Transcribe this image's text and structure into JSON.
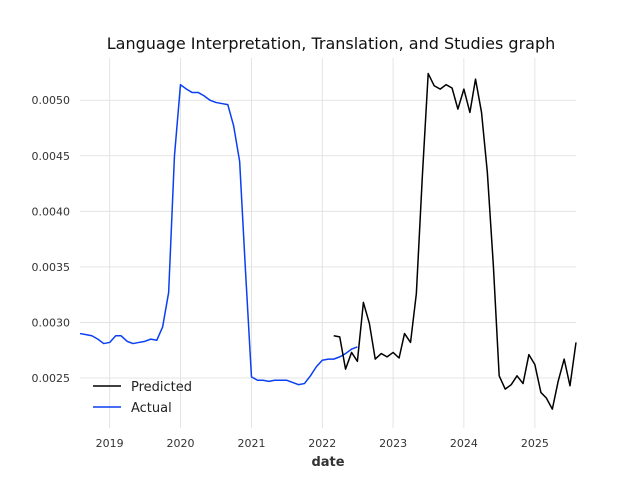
{
  "chart_data": {
    "type": "line",
    "title": "Language Interpretation, Translation, and Studies graph",
    "xlabel": "date",
    "ylabel": "",
    "xlim": [
      "2018-08-01",
      "2025-08-01"
    ],
    "ylim": [
      0.00205,
      0.00538
    ],
    "x_ticks": [
      "2019",
      "2020",
      "2021",
      "2022",
      "2023",
      "2024",
      "2025"
    ],
    "y_ticks": [
      "0.0025",
      "0.0030",
      "0.0035",
      "0.0040",
      "0.0045",
      "0.0050"
    ],
    "grid": true,
    "legend_position": "lower-left",
    "legend": [
      "Predicted",
      "Actual"
    ],
    "series": [
      {
        "name": "Actual",
        "color": "#0a3ff2",
        "points": [
          [
            "2018-08-01",
            0.0029
          ],
          [
            "2018-09-01",
            0.00289
          ],
          [
            "2018-10-01",
            0.00288
          ],
          [
            "2018-11-01",
            0.00285
          ],
          [
            "2018-12-01",
            0.00281
          ],
          [
            "2019-01-01",
            0.00282
          ],
          [
            "2019-02-01",
            0.00288
          ],
          [
            "2019-03-01",
            0.00288
          ],
          [
            "2019-04-01",
            0.00283
          ],
          [
            "2019-05-01",
            0.00281
          ],
          [
            "2019-06-01",
            0.00282
          ],
          [
            "2019-07-01",
            0.00283
          ],
          [
            "2019-08-01",
            0.00285
          ],
          [
            "2019-09-01",
            0.00284
          ],
          [
            "2019-10-01",
            0.00296
          ],
          [
            "2019-11-01",
            0.00327
          ],
          [
            "2019-12-01",
            0.0045
          ],
          [
            "2020-01-01",
            0.00514
          ],
          [
            "2020-02-01",
            0.0051
          ],
          [
            "2020-03-01",
            0.00507
          ],
          [
            "2020-04-01",
            0.00507
          ],
          [
            "2020-05-01",
            0.00504
          ],
          [
            "2020-06-01",
            0.005
          ],
          [
            "2020-07-01",
            0.00498
          ],
          [
            "2020-08-01",
            0.00497
          ],
          [
            "2020-09-01",
            0.00496
          ],
          [
            "2020-10-01",
            0.00477
          ],
          [
            "2020-11-01",
            0.00445
          ],
          [
            "2020-12-01",
            0.00347
          ],
          [
            "2021-01-01",
            0.00251
          ],
          [
            "2021-02-01",
            0.00248
          ],
          [
            "2021-03-01",
            0.00248
          ],
          [
            "2021-04-01",
            0.00247
          ],
          [
            "2021-05-01",
            0.00248
          ],
          [
            "2021-06-01",
            0.00248
          ],
          [
            "2021-07-01",
            0.00248
          ],
          [
            "2021-08-01",
            0.00246
          ],
          [
            "2021-09-01",
            0.00244
          ],
          [
            "2021-10-01",
            0.00245
          ],
          [
            "2021-11-01",
            0.00252
          ],
          [
            "2021-12-01",
            0.0026
          ],
          [
            "2022-01-01",
            0.00266
          ],
          [
            "2022-02-01",
            0.00267
          ],
          [
            "2022-03-01",
            0.00267
          ],
          [
            "2022-04-01",
            0.00269
          ],
          [
            "2022-05-01",
            0.00272
          ],
          [
            "2022-06-01",
            0.00276
          ],
          [
            "2022-07-01",
            0.00278
          ]
        ]
      },
      {
        "name": "Predicted",
        "color": "#000000",
        "points": [
          [
            "2022-03-01",
            0.00288
          ],
          [
            "2022-04-01",
            0.00287
          ],
          [
            "2022-05-01",
            0.00258
          ],
          [
            "2022-06-01",
            0.00273
          ],
          [
            "2022-07-01",
            0.00265
          ],
          [
            "2022-08-01",
            0.00318
          ],
          [
            "2022-09-01",
            0.00299
          ],
          [
            "2022-10-01",
            0.00267
          ],
          [
            "2022-11-01",
            0.00272
          ],
          [
            "2022-12-01",
            0.00269
          ],
          [
            "2023-01-01",
            0.00273
          ],
          [
            "2023-02-01",
            0.00268
          ],
          [
            "2023-03-01",
            0.0029
          ],
          [
            "2023-04-01",
            0.00282
          ],
          [
            "2023-05-01",
            0.00326
          ],
          [
            "2023-06-01",
            0.00432
          ],
          [
            "2023-07-01",
            0.00524
          ],
          [
            "2023-08-01",
            0.00513
          ],
          [
            "2023-09-01",
            0.0051
          ],
          [
            "2023-10-01",
            0.00514
          ],
          [
            "2023-11-01",
            0.00511
          ],
          [
            "2023-12-01",
            0.00492
          ],
          [
            "2024-01-01",
            0.0051
          ],
          [
            "2024-02-01",
            0.00489
          ],
          [
            "2024-03-01",
            0.00519
          ],
          [
            "2024-04-01",
            0.00489
          ],
          [
            "2024-05-01",
            0.00435
          ],
          [
            "2024-06-01",
            0.00351
          ],
          [
            "2024-07-01",
            0.00252
          ],
          [
            "2024-08-01",
            0.0024
          ],
          [
            "2024-09-01",
            0.00244
          ],
          [
            "2024-10-01",
            0.00252
          ],
          [
            "2024-11-01",
            0.00245
          ],
          [
            "2024-12-01",
            0.00271
          ],
          [
            "2025-01-01",
            0.00262
          ],
          [
            "2025-02-01",
            0.00237
          ],
          [
            "2025-03-01",
            0.00232
          ],
          [
            "2025-04-01",
            0.00222
          ],
          [
            "2025-05-01",
            0.00247
          ],
          [
            "2025-06-01",
            0.00267
          ],
          [
            "2025-07-01",
            0.00243
          ],
          [
            "2025-08-01",
            0.00282
          ]
        ]
      }
    ]
  }
}
